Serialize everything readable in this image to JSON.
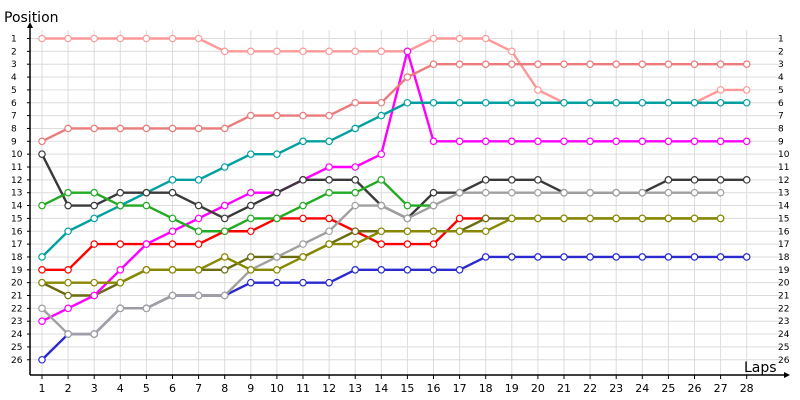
{
  "chart_data": {
    "type": "line",
    "xlabel": "Laps",
    "ylabel": "Position",
    "x_ticks": [
      1,
      2,
      3,
      4,
      5,
      6,
      7,
      8,
      9,
      10,
      11,
      12,
      13,
      14,
      15,
      16,
      17,
      18,
      19,
      20,
      21,
      22,
      23,
      24,
      25,
      26,
      27,
      28
    ],
    "y_ticks": [
      1,
      2,
      3,
      4,
      5,
      6,
      7,
      8,
      9,
      10,
      11,
      12,
      13,
      14,
      15,
      16,
      17,
      18,
      19,
      20,
      21,
      22,
      23,
      24,
      25,
      26
    ],
    "xlim": [
      0,
      28
    ],
    "ylim": [
      1,
      26
    ],
    "grid": true,
    "series": [
      {
        "color": "#ff0000",
        "values": [
          19,
          19,
          17,
          17,
          17,
          17,
          17,
          16,
          16,
          15,
          15,
          15,
          16,
          17,
          17,
          17,
          15,
          15,
          null,
          null,
          null,
          null,
          null,
          null,
          null,
          null,
          null,
          null
        ]
      },
      {
        "color": "#ff9999",
        "values": [
          1,
          1,
          1,
          1,
          1,
          1,
          1,
          2,
          2,
          2,
          2,
          2,
          2,
          2,
          2,
          1,
          1,
          1,
          2,
          5,
          6,
          6,
          6,
          6,
          6,
          6,
          5,
          5
        ]
      },
      {
        "color": "#2a2ad0",
        "values": [
          26,
          24,
          24,
          22,
          22,
          21,
          21,
          21,
          20,
          20,
          20,
          20,
          19,
          19,
          19,
          19,
          19,
          18,
          18,
          18,
          18,
          18,
          18,
          18,
          18,
          18,
          18,
          18
        ]
      },
      {
        "color": "#6b6b10",
        "values": [
          20,
          21,
          21,
          20,
          19,
          19,
          19,
          19,
          18,
          18,
          18,
          17,
          16,
          16,
          16,
          16,
          16,
          15,
          15,
          15,
          15,
          15,
          15,
          15,
          15,
          15,
          15,
          null
        ]
      },
      {
        "color": "#ff00ff",
        "values": [
          23,
          22,
          21,
          19,
          17,
          16,
          15,
          14,
          13,
          13,
          12,
          11,
          11,
          10,
          2,
          9,
          9,
          9,
          9,
          9,
          9,
          9,
          9,
          9,
          9,
          9,
          9,
          9
        ]
      },
      {
        "color": "#00a0a0",
        "values": [
          18,
          16,
          15,
          14,
          13,
          12,
          12,
          11,
          10,
          10,
          9,
          9,
          8,
          7,
          6,
          6,
          6,
          6,
          6,
          6,
          6,
          6,
          6,
          6,
          6,
          6,
          6,
          6
        ]
      },
      {
        "color": "#eb7b7b",
        "values": [
          9,
          8,
          8,
          8,
          8,
          8,
          8,
          8,
          7,
          7,
          7,
          7,
          6,
          6,
          4,
          3,
          3,
          3,
          3,
          3,
          3,
          3,
          3,
          3,
          3,
          3,
          3,
          3
        ]
      },
      {
        "color": "#3a3a3a",
        "values": [
          10,
          14,
          14,
          13,
          13,
          13,
          14,
          15,
          14,
          13,
          12,
          12,
          12,
          14,
          15,
          13,
          13,
          12,
          12,
          12,
          13,
          13,
          13,
          13,
          12,
          12,
          12,
          12
        ]
      },
      {
        "color": "#22aa22",
        "values": [
          14,
          13,
          13,
          14,
          14,
          15,
          16,
          16,
          15,
          15,
          14,
          13,
          13,
          12,
          14,
          14,
          null,
          null,
          null,
          null,
          null,
          null,
          null,
          null,
          null,
          null,
          null,
          null
        ]
      },
      {
        "color": "#a0a0a0",
        "values": [
          22,
          24,
          24,
          22,
          22,
          21,
          21,
          21,
          19,
          18,
          17,
          16,
          14,
          14,
          15,
          14,
          13,
          13,
          13,
          13,
          13,
          13,
          13,
          13,
          13,
          13,
          13,
          null
        ]
      },
      {
        "color": "#888800",
        "values": [
          20,
          20,
          20,
          20,
          19,
          19,
          19,
          18,
          19,
          19,
          18,
          17,
          17,
          16,
          16,
          16,
          16,
          16,
          15,
          15,
          15,
          15,
          15,
          15,
          15,
          15,
          15,
          null
        ]
      }
    ]
  }
}
